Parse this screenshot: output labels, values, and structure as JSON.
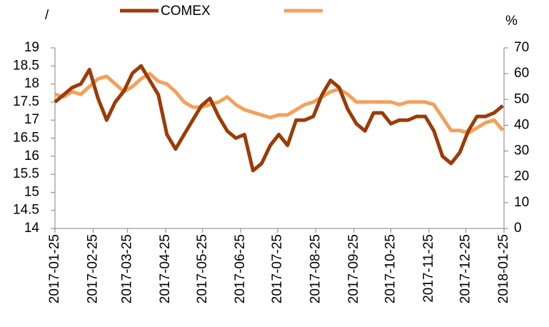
{
  "chart_data": {
    "type": "line",
    "ylabel": "/",
    "y2label": "%",
    "x": [
      "2017-01-25",
      "2017-02-01",
      "2017-02-08",
      "2017-02-15",
      "2017-02-22",
      "2017-03-01",
      "2017-03-08",
      "2017-03-15",
      "2017-03-22",
      "2017-03-29",
      "2017-04-05",
      "2017-04-12",
      "2017-04-19",
      "2017-04-26",
      "2017-05-03",
      "2017-05-10",
      "2017-05-17",
      "2017-05-24",
      "2017-05-31",
      "2017-06-07",
      "2017-06-14",
      "2017-06-21",
      "2017-06-28",
      "2017-07-05",
      "2017-07-12",
      "2017-07-19",
      "2017-07-26",
      "2017-08-02",
      "2017-08-09",
      "2017-08-16",
      "2017-08-23",
      "2017-08-30",
      "2017-09-06",
      "2017-09-13",
      "2017-09-20",
      "2017-09-27",
      "2017-10-04",
      "2017-10-11",
      "2017-10-18",
      "2017-10-25",
      "2017-11-01",
      "2017-11-08",
      "2017-11-15",
      "2017-11-22",
      "2017-11-29",
      "2017-12-06",
      "2017-12-13",
      "2017-12-20",
      "2017-12-27",
      "2018-01-03",
      "2018-01-10",
      "2018-01-17",
      "2018-01-24"
    ],
    "series": [
      {
        "name": "COMEX",
        "color": "#9c3b07",
        "axis": "y",
        "values": [
          17.5,
          17.7,
          17.9,
          18.0,
          18.4,
          17.6,
          17.0,
          17.5,
          17.8,
          18.3,
          18.5,
          18.1,
          17.7,
          16.6,
          16.2,
          16.6,
          17.0,
          17.4,
          17.6,
          17.1,
          16.7,
          16.5,
          16.6,
          15.6,
          15.8,
          16.3,
          16.6,
          16.3,
          17.0,
          17.0,
          17.1,
          17.7,
          18.1,
          17.9,
          17.3,
          16.9,
          16.7,
          17.2,
          17.2,
          16.9,
          17.0,
          17.0,
          17.1,
          17.1,
          16.7,
          16.0,
          15.8,
          16.1,
          16.7,
          17.1,
          17.1,
          17.2,
          17.4
        ]
      },
      {
        "color": "#f5a05a",
        "axis": "y2",
        "values": [
          52,
          51,
          53,
          52,
          55,
          58,
          59,
          56,
          53,
          55,
          58,
          60,
          57,
          56,
          53,
          49,
          47,
          47,
          48,
          49,
          51,
          48,
          46,
          45,
          44,
          43,
          44,
          44,
          46,
          48,
          49,
          51,
          53,
          54,
          52,
          49,
          49,
          49,
          49,
          49,
          48,
          49,
          49,
          49,
          48,
          43,
          38,
          38,
          37,
          39,
          41,
          42,
          38
        ]
      }
    ],
    "xlim": [
      "2017-01-25",
      "2018-01-25"
    ],
    "xticks": [
      "2017-01-25",
      "2017-02-25",
      "2017-03-25",
      "2017-04-25",
      "2017-05-25",
      "2017-06-25",
      "2017-07-25",
      "2017-08-25",
      "2017-09-25",
      "2017-10-25",
      "2017-11-25",
      "2017-12-25",
      "2018-01-25"
    ],
    "ylim": [
      14,
      19
    ],
    "yticks": [
      14,
      14.5,
      15,
      15.5,
      16,
      16.5,
      17,
      17.5,
      18,
      18.5,
      19
    ],
    "y2lim": [
      0,
      70
    ],
    "y2ticks": [
      0,
      10,
      20,
      30,
      40,
      50,
      60,
      70
    ],
    "grid": false
  }
}
